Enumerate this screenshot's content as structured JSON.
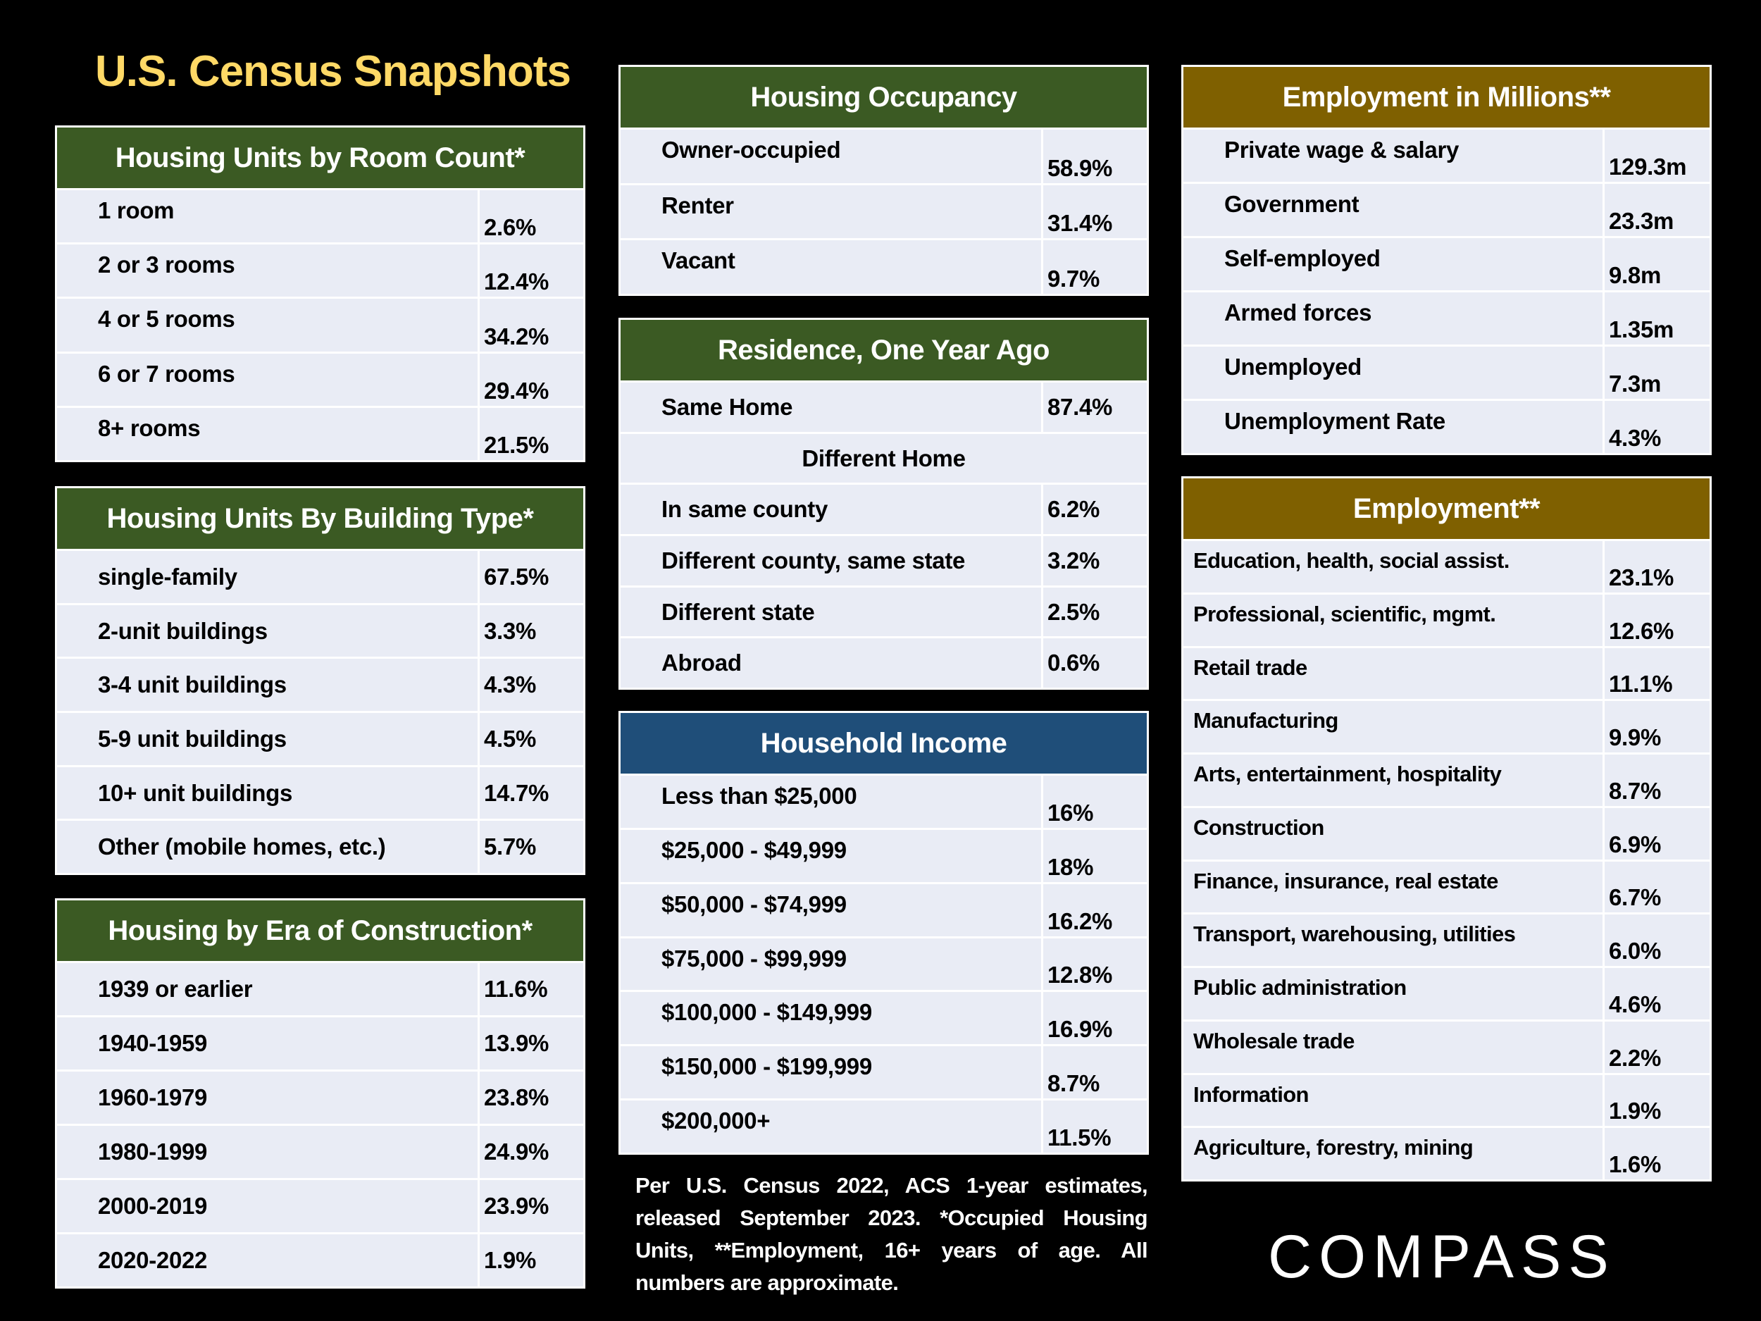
{
  "title": "U.S. Census Snapshots",
  "colors": {
    "title": "#ffd966",
    "green_header": "#3b5a23",
    "gold_header": "#7f6000",
    "blue_header": "#1f4e79",
    "row_bg": "#e9ecf5"
  },
  "tables": {
    "room_count": {
      "title": "Housing Units by Room Count*",
      "rows": [
        [
          "1 room",
          "2.6%"
        ],
        [
          "2 or 3 rooms",
          "12.4%"
        ],
        [
          "4 or 5 rooms",
          "34.2%"
        ],
        [
          "6 or 7 rooms",
          "29.4%"
        ],
        [
          "8+ rooms",
          "21.5%"
        ]
      ]
    },
    "building_type": {
      "title": "Housing Units By Building Type*",
      "rows": [
        [
          "single-family",
          "67.5%"
        ],
        [
          "2-unit buildings",
          "3.3%"
        ],
        [
          "3-4 unit buildings",
          "4.3%"
        ],
        [
          "5-9 unit buildings",
          "4.5%"
        ],
        [
          "10+ unit buildings",
          "14.7%"
        ],
        [
          "Other (mobile homes, etc.)",
          "5.7%"
        ]
      ]
    },
    "era": {
      "title": "Housing by Era of Construction*",
      "rows": [
        [
          "1939 or earlier",
          "11.6%"
        ],
        [
          "1940-1959",
          "13.9%"
        ],
        [
          "1960-1979",
          "23.8%"
        ],
        [
          "1980-1999",
          "24.9%"
        ],
        [
          "2000-2019",
          "23.9%"
        ],
        [
          "2020-2022",
          "1.9%"
        ]
      ]
    },
    "occupancy": {
      "title": "Housing Occupancy",
      "rows": [
        [
          "Owner-occupied",
          "58.9%"
        ],
        [
          "Renter",
          "31.4%"
        ],
        [
          "Vacant",
          "9.7%"
        ]
      ]
    },
    "residence": {
      "title": "Residence, One Year Ago",
      "rows": [
        [
          "Same Home",
          "87.4%"
        ],
        [
          "Different Home",
          ""
        ],
        [
          "In same county",
          "6.2%"
        ],
        [
          "Different county, same state",
          "3.2%"
        ],
        [
          "Different state",
          "2.5%"
        ],
        [
          "Abroad",
          "0.6%"
        ]
      ]
    },
    "income": {
      "title": "Household Income",
      "rows": [
        [
          "Less than $25,000",
          "16%"
        ],
        [
          "$25,000 - $49,999",
          "18%"
        ],
        [
          "$50,000 - $74,999",
          "16.2%"
        ],
        [
          "$75,000 - $99,999",
          "12.8%"
        ],
        [
          "$100,000 - $149,999",
          "16.9%"
        ],
        [
          "$150,000 - $199,999",
          "8.7%"
        ],
        [
          "$200,000+",
          "11.5%"
        ]
      ]
    },
    "employment_millions": {
      "title": "Employment in Millions**",
      "rows": [
        [
          "Private wage & salary",
          "129.3m"
        ],
        [
          "Government",
          "23.3m"
        ],
        [
          "Self-employed",
          "9.8m"
        ],
        [
          "Armed forces",
          "1.35m"
        ],
        [
          "Unemployed",
          "7.3m"
        ],
        [
          "Unemployment Rate",
          "4.3%"
        ]
      ]
    },
    "employment": {
      "title": "Employment**",
      "rows": [
        [
          "Education, health, social assist.",
          "23.1%"
        ],
        [
          "Professional, scientific, mgmt.",
          "12.6%"
        ],
        [
          "Retail trade",
          "11.1%"
        ],
        [
          "Manufacturing",
          "9.9%"
        ],
        [
          "Arts, entertainment, hospitality",
          "8.7%"
        ],
        [
          "Construction",
          "6.9%"
        ],
        [
          "Finance, insurance, real estate",
          "6.7%"
        ],
        [
          "Transport, warehousing, utilities",
          "6.0%"
        ],
        [
          "Public administration",
          "4.6%"
        ],
        [
          "Wholesale trade",
          "2.2%"
        ],
        [
          "Information",
          "1.9%"
        ],
        [
          "Agriculture, forestry, mining",
          "1.6%"
        ]
      ]
    }
  },
  "footnote": "Per U.S. Census 2022, ACS 1-year estimates, released September 2023. *Occupied Housing Units, **Employment, 16+ years of age. All numbers are approximate.",
  "logo": "COMPASS"
}
